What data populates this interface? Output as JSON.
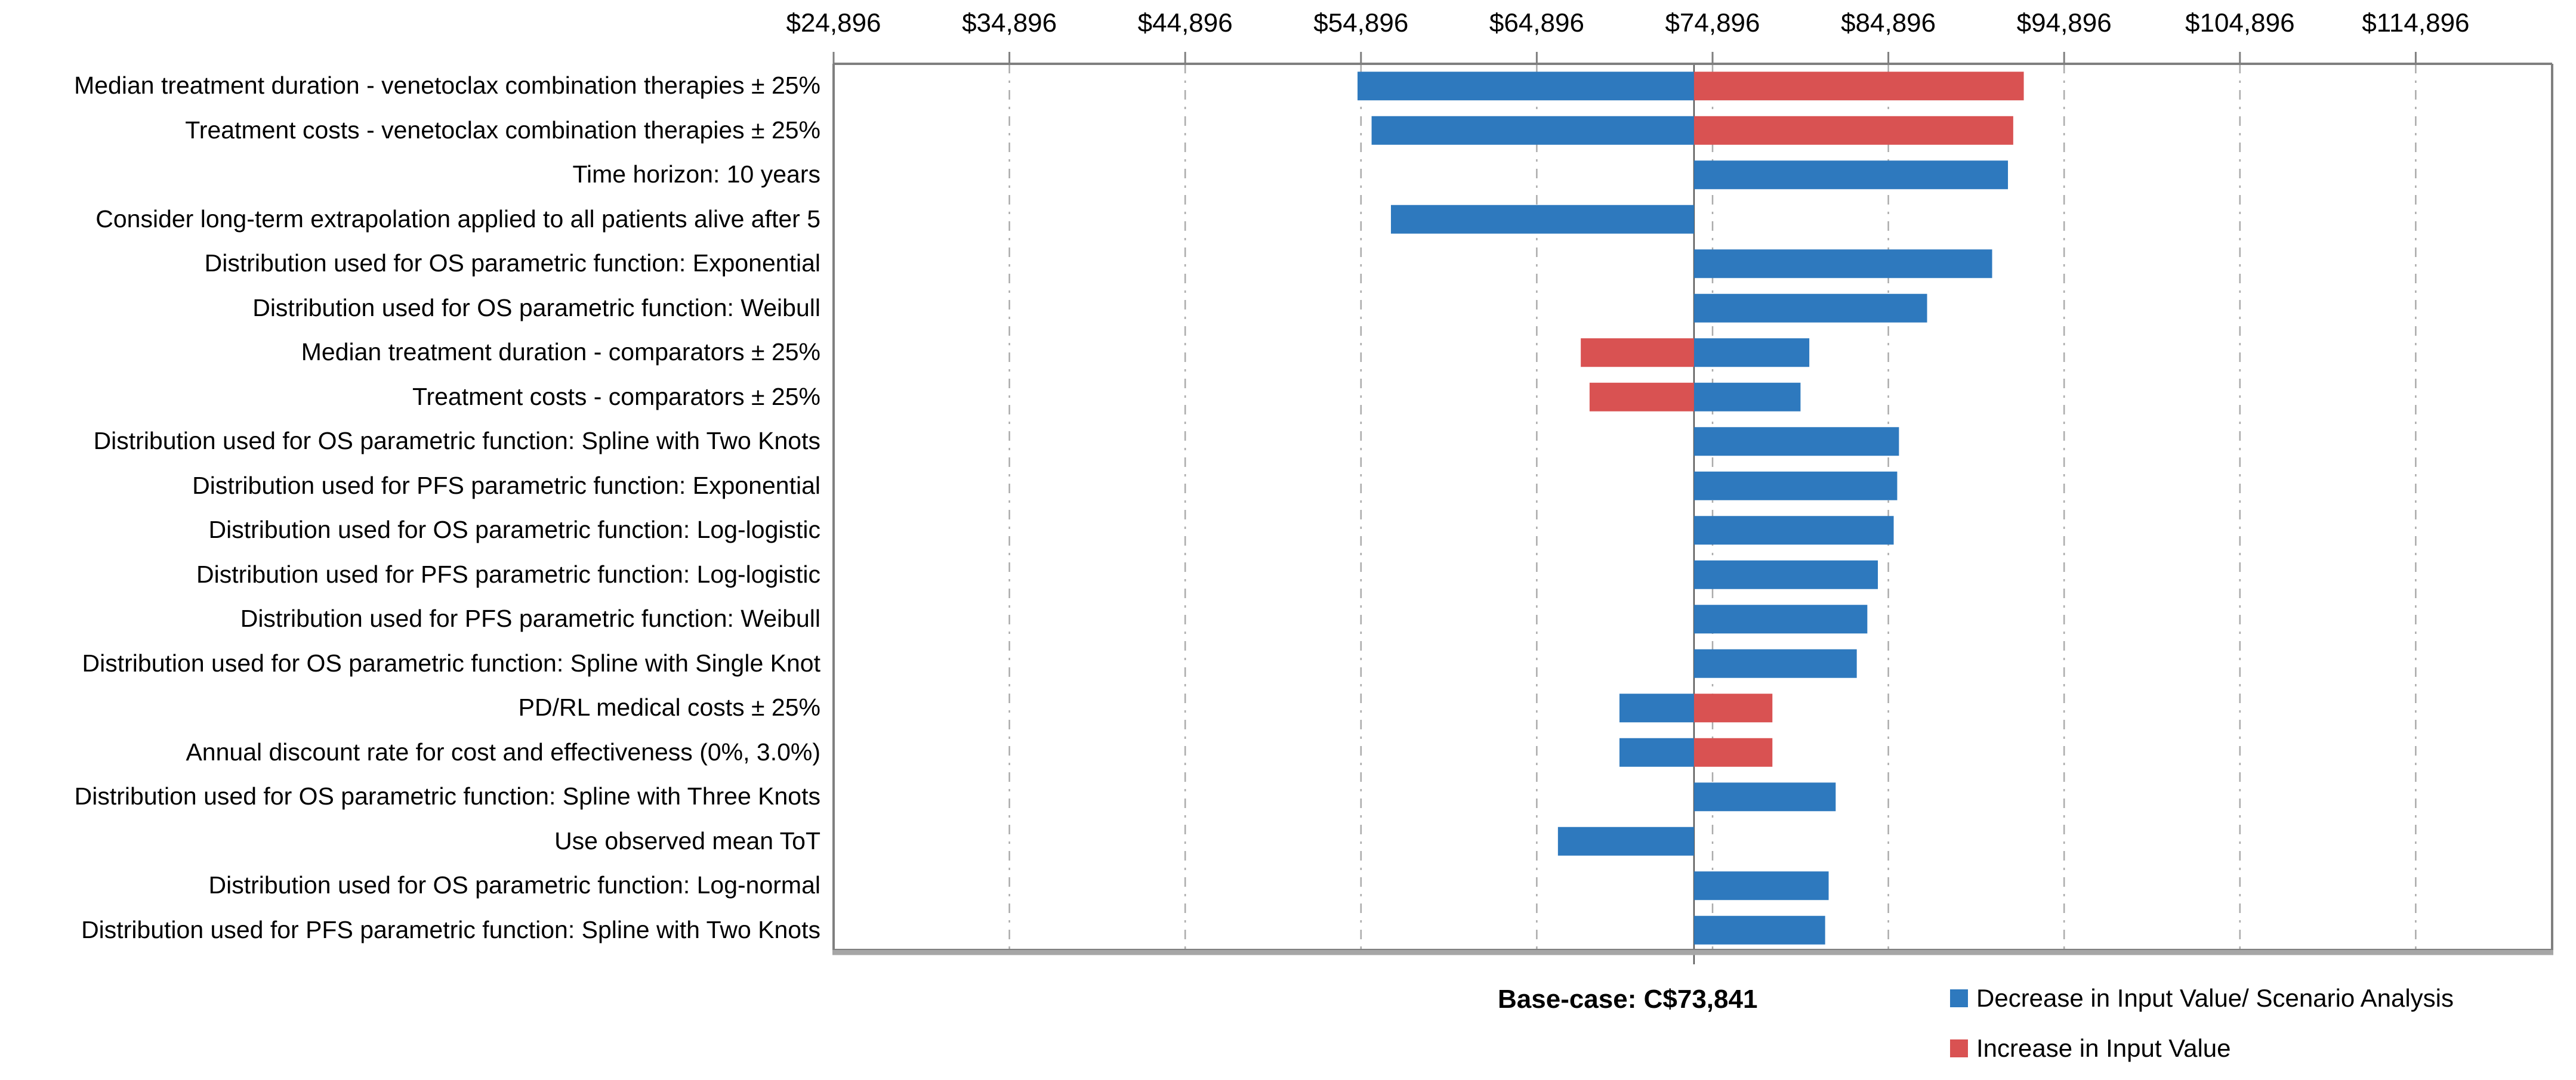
{
  "chart_data": {
    "type": "bar",
    "subtype": "tornado",
    "orientation": "horizontal",
    "title": "",
    "xlabel": "",
    "ylabel": "",
    "axis": {
      "min": 24896,
      "max": 122656,
      "tick_interval": 10000,
      "tick_values": [
        24896,
        34896,
        44896,
        54896,
        64896,
        74896,
        84896,
        94896,
        104896,
        114896
      ],
      "tick_labels": [
        "$24,896",
        "$34,896",
        "$44,896",
        "$54,896",
        "$64,896",
        "$74,896",
        "$84,896",
        "$94,896",
        "$104,896",
        "$114,896"
      ],
      "grid": true
    },
    "base_case": {
      "label": "Base-case: C$73,841",
      "value": 73841
    },
    "colors": {
      "decrease": "#2E79BE",
      "increase": "#D95252",
      "gridline": "#ABABAB",
      "plot_border": "#7F7F7F",
      "bottom_axis": "#A6A6A6",
      "pivot_line": "#595959"
    },
    "legend": [
      {
        "key": "decrease",
        "label": "Decrease in Input Value/ Scenario Analysis",
        "color": "#2E79BE"
      },
      {
        "key": "increase",
        "label": "Increase in Input Value",
        "color": "#D95252"
      }
    ],
    "rows": [
      {
        "label": "Median treatment duration - venetoclax combination therapies ± 25%",
        "decrease": 54700,
        "increase": 92600
      },
      {
        "label": "Treatment costs - venetoclax combination therapies ± 25%",
        "decrease": 55500,
        "increase": 92000
      },
      {
        "label": "Time horizon: 10 years",
        "decrease": 91700,
        "increase": null
      },
      {
        "label": "Consider long-term extrapolation applied to all patients alive after 5",
        "decrease": 56600,
        "increase": null
      },
      {
        "label": "Distribution used for OS parametric function: Exponential",
        "decrease": 90800,
        "increase": null
      },
      {
        "label": "Distribution used for OS parametric function: Weibull",
        "decrease": 87100,
        "increase": null
      },
      {
        "label": "Median treatment duration - comparators ± 25%",
        "decrease": 80400,
        "increase": 67400
      },
      {
        "label": "Treatment costs - comparators ± 25%",
        "decrease": 79900,
        "increase": 67900
      },
      {
        "label": "Distribution used for OS parametric function: Spline with Two Knots",
        "decrease": 85500,
        "increase": null
      },
      {
        "label": "Distribution used for PFS parametric function: Exponential",
        "decrease": 85400,
        "increase": null
      },
      {
        "label": "Distribution used for OS parametric function: Log-logistic",
        "decrease": 85200,
        "increase": null
      },
      {
        "label": "Distribution used for PFS parametric function: Log-logistic",
        "decrease": 84300,
        "increase": null
      },
      {
        "label": "Distribution used for PFS parametric function: Weibull",
        "decrease": 83700,
        "increase": null
      },
      {
        "label": "Distribution used for OS parametric function: Spline with Single Knot",
        "decrease": 83100,
        "increase": null
      },
      {
        "label": "PD/RL medical costs ± 25%",
        "decrease": 69600,
        "increase": 78300
      },
      {
        "label": "Annual discount rate for cost and effectiveness (0%, 3.0%)",
        "decrease": 69600,
        "increase": 78300
      },
      {
        "label": "Distribution used for OS parametric function: Spline with Three Knots",
        "decrease": 81900,
        "increase": null
      },
      {
        "label": "Use observed mean ToT",
        "decrease": 66100,
        "increase": null
      },
      {
        "label": "Distribution used for OS parametric function: Log-normal",
        "decrease": 81500,
        "increase": null
      },
      {
        "label": "Distribution used for PFS parametric function: Spline with Two Knots",
        "decrease": 81300,
        "increase": null
      }
    ]
  }
}
